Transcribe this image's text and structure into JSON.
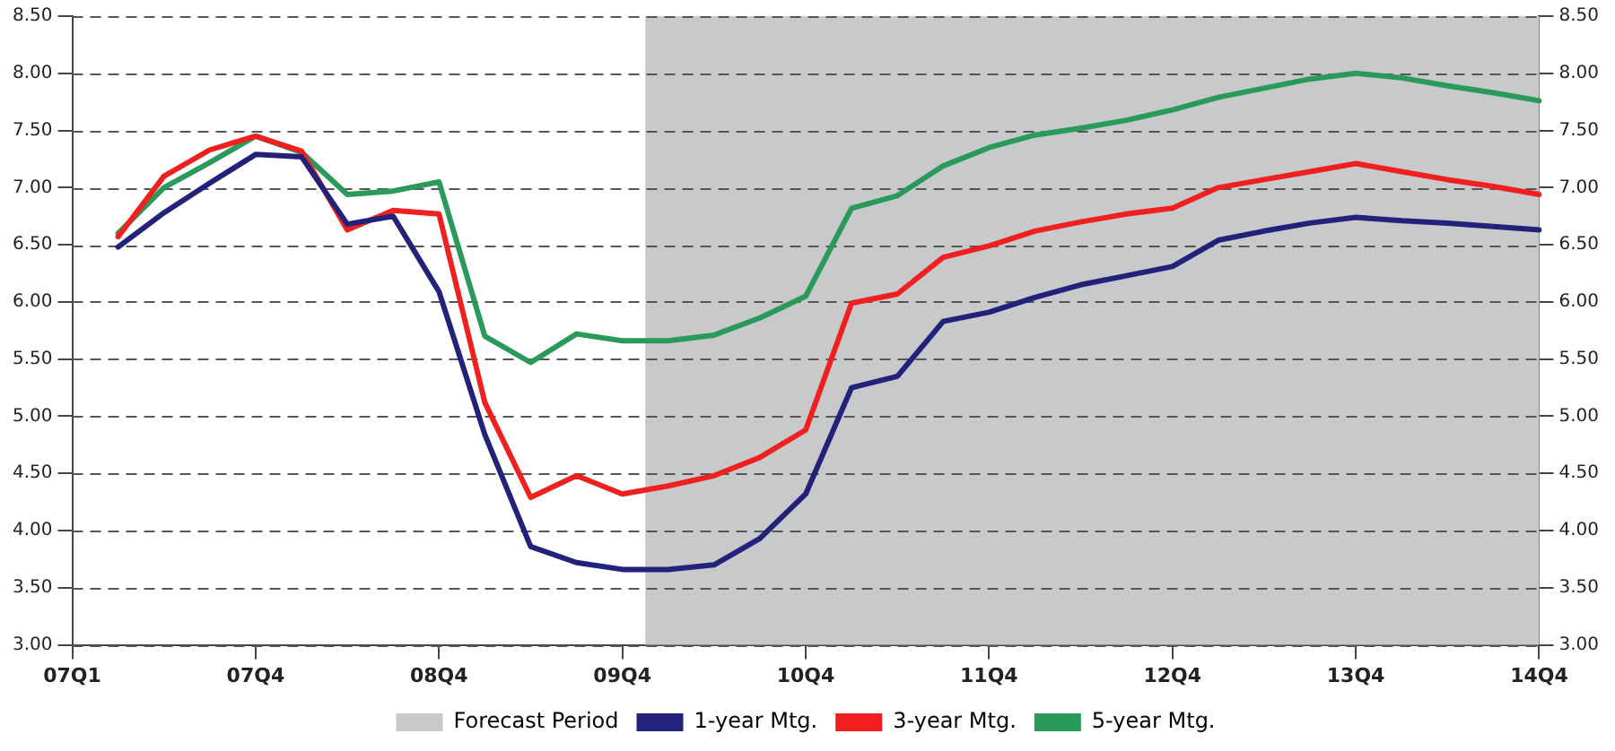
{
  "chart_data": {
    "type": "line",
    "categories": [
      "07Q1",
      null,
      null,
      null,
      "07Q4",
      null,
      null,
      null,
      "08Q4",
      null,
      null,
      null,
      "09Q4",
      null,
      null,
      null,
      "10Q4",
      null,
      null,
      null,
      "11Q4",
      null,
      null,
      null,
      "12Q4",
      null,
      null,
      null,
      "13Q4",
      null,
      null,
      null,
      "14Q4"
    ],
    "series": [
      {
        "name": "1-year Mtg.",
        "color": "#22227a",
        "values": [
          null,
          6.48,
          6.78,
          7.04,
          7.29,
          7.27,
          6.68,
          6.75,
          6.09,
          4.84,
          3.86,
          3.72,
          3.66,
          3.66,
          3.7,
          3.93,
          4.32,
          5.25,
          5.35,
          5.83,
          5.91,
          6.04,
          6.15,
          6.23,
          6.31,
          6.54,
          6.62,
          6.69,
          6.74,
          6.71,
          6.69,
          6.66,
          6.63
        ]
      },
      {
        "name": "3-year Mtg.",
        "color": "#f02020",
        "values": [
          null,
          6.57,
          7.1,
          7.33,
          7.45,
          7.32,
          6.63,
          6.8,
          6.77,
          5.12,
          4.29,
          4.48,
          4.32,
          4.39,
          4.48,
          4.64,
          4.88,
          5.99,
          6.07,
          6.39,
          6.49,
          6.62,
          6.7,
          6.77,
          6.82,
          7.0,
          7.07,
          7.14,
          7.21,
          7.14,
          7.07,
          7.01,
          6.94
        ]
      },
      {
        "name": "5-year Mtg.",
        "color": "#2a9a5a",
        "values": [
          null,
          6.6,
          7.0,
          7.22,
          7.45,
          7.31,
          6.94,
          6.97,
          7.05,
          5.7,
          5.47,
          5.72,
          5.66,
          5.66,
          5.71,
          5.86,
          6.05,
          6.82,
          6.93,
          7.19,
          7.35,
          7.46,
          7.52,
          7.59,
          7.68,
          7.79,
          7.87,
          7.95,
          8.0,
          7.96,
          7.89,
          7.83,
          7.76
        ]
      }
    ],
    "ylim": [
      3,
      8.5
    ],
    "yticks": [
      {
        "value": 3,
        "label": "3.00"
      },
      {
        "value": 3.5,
        "label": "3.50"
      },
      {
        "value": 4,
        "label": "4.00"
      },
      {
        "value": 4.5,
        "label": "4.50"
      },
      {
        "value": 5,
        "label": "5.00"
      },
      {
        "value": 5.5,
        "label": "5.50"
      },
      {
        "value": 6,
        "label": "6.00"
      },
      {
        "value": 6.5,
        "label": "6.50"
      },
      {
        "value": 7,
        "label": "7.00"
      },
      {
        "value": 7.5,
        "label": "7.50"
      },
      {
        "value": 8,
        "label": "8.00"
      },
      {
        "value": 8.5,
        "label": "8.50"
      }
    ],
    "y2lim": [
      3,
      8.5
    ],
    "y2ticks": [
      {
        "value": 3,
        "label": "3.00"
      },
      {
        "value": 3.5,
        "label": "3.50"
      },
      {
        "value": 4,
        "label": "4.00"
      },
      {
        "value": 4.5,
        "label": "4.50"
      },
      {
        "value": 5,
        "label": "5.00"
      },
      {
        "value": 5.5,
        "label": "5.50"
      },
      {
        "value": 6,
        "label": "6.00"
      },
      {
        "value": 6.5,
        "label": "6.50"
      },
      {
        "value": 7,
        "label": "7.00"
      },
      {
        "value": 7.5,
        "label": "7.50"
      },
      {
        "value": 8,
        "label": "8.00"
      },
      {
        "value": 8.5,
        "label": "8.50"
      }
    ],
    "bands": [
      {
        "axis": "x",
        "from": "09Q4",
        "to": "14Q4",
        "label": "Forecast Period",
        "color": "#c8c9cb"
      }
    ],
    "grid": "y",
    "legend": "bottom",
    "marker": "none",
    "line_style": "solid"
  }
}
